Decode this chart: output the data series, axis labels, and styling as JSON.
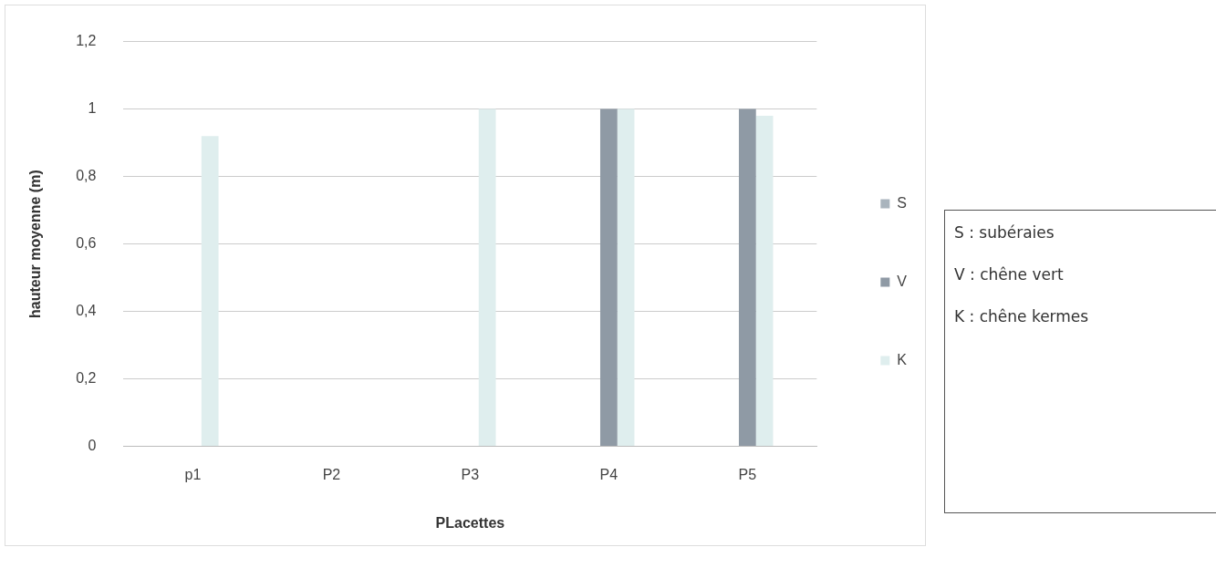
{
  "chart_data": {
    "type": "bar",
    "xlabel": "PLacettes",
    "ylabel": "hauteur moyenne (m)",
    "categories": [
      "p1",
      "P2",
      "P3",
      "P4",
      "P5"
    ],
    "series": [
      {
        "name": "S",
        "color": "#a9b4bd",
        "values": [
          0,
          0,
          0,
          0,
          0
        ]
      },
      {
        "name": "V",
        "color": "#8f9aa5",
        "values": [
          0,
          0,
          0,
          1,
          1
        ]
      },
      {
        "name": "K",
        "color": "#dfeeee",
        "values": [
          0.92,
          0,
          1,
          1,
          0.98
        ]
      }
    ],
    "ylim": [
      0,
      1.2
    ],
    "yticks": [
      0,
      {
        "value": 0.2,
        "label": "0,2"
      },
      {
        "value": 0.4,
        "label": "0,4"
      },
      {
        "value": 0.6,
        "label": "0,6"
      },
      {
        "value": 0.8,
        "label": "0,8"
      },
      1,
      {
        "value": 1.2,
        "label": "1,2"
      }
    ],
    "grid": "y",
    "legend": "right",
    "annotations": [
      "S : subéraies",
      "V : chêne vert",
      "K : chêne kermes"
    ]
  }
}
